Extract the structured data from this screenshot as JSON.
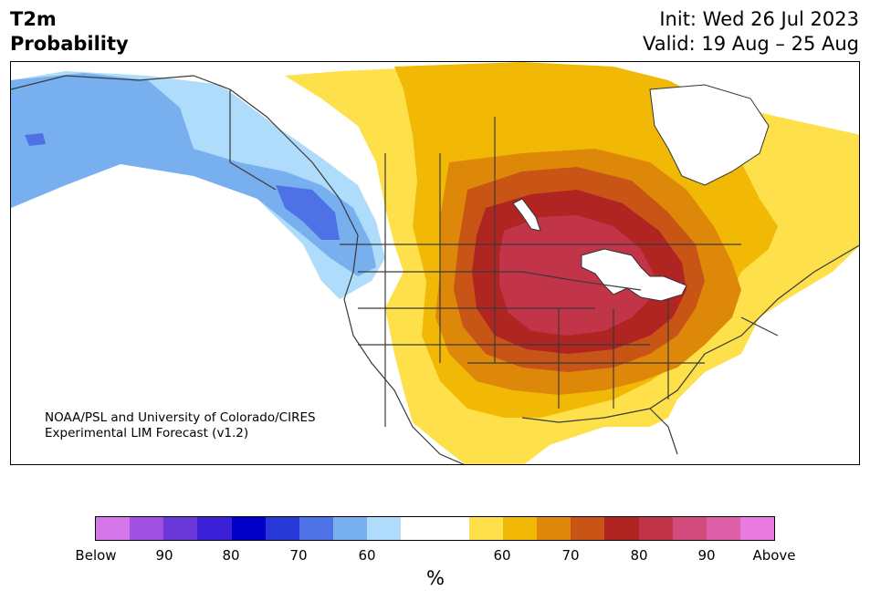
{
  "title": {
    "variable": "T2m",
    "subtitle": "Probability",
    "init": "Init: Wed 26 Jul 2023",
    "valid": "Valid: 19 Aug – 25 Aug"
  },
  "credit": {
    "line1": "NOAA/PSL and University of Colorado/CIRES",
    "line2": "Experimental LIM Forecast (v1.2)"
  },
  "colorbar": {
    "colors": [
      "#d577e8",
      "#a050e0",
      "#6a38d8",
      "#3a1fd6",
      "#0000c8",
      "#2638d6",
      "#4e72e6",
      "#78afee",
      "#aedcfa",
      "#ffffff",
      "#ffffff",
      "#fde04a",
      "#f2b806",
      "#de880a",
      "#c85416",
      "#b02422",
      "#c23448",
      "#d14c7c",
      "#dd60a8",
      "#e87ae0"
    ],
    "tick_labels": [
      "Below",
      "90",
      "80",
      "70",
      "60",
      "60",
      "70",
      "80",
      "90",
      "Above"
    ],
    "unit": "%"
  },
  "map": {
    "region": "North America",
    "legend_meaning": "Probability of below / above normal 2-meter temperature"
  }
}
